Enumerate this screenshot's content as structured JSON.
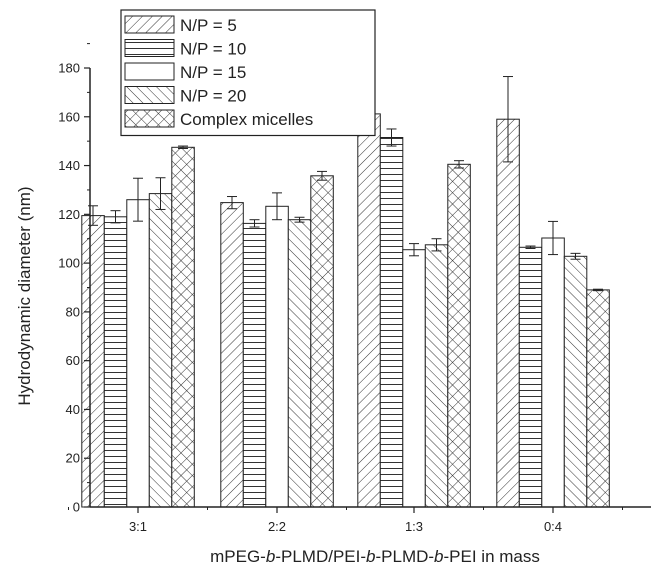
{
  "chart_data": {
    "type": "bar",
    "xlabel": [
      "mPEG-",
      "b",
      "-PLMD/PEI-",
      "b",
      "-PLMD-",
      "b",
      "-PEI in mass"
    ],
    "ylabel": "Hydrodynamic diameter (nm)",
    "ylim": [
      0,
      180
    ],
    "yticks": [
      "0",
      "20",
      "40",
      "60",
      "80",
      "100",
      "120",
      "140",
      "160",
      "180"
    ],
    "categories": [
      "3:1",
      "2:2",
      "1:3",
      "0:4"
    ],
    "legend_position": "top-left",
    "series": [
      {
        "name": "N/P = 5",
        "pattern": "diag-right",
        "values": [
          119.5,
          124.8,
          161.2,
          159.0
        ],
        "errors": [
          4.0,
          2.5,
          7.8,
          17.5
        ]
      },
      {
        "name": "N/P = 10",
        "pattern": "horizontal",
        "values": [
          119.0,
          116.3,
          151.5,
          106.5
        ],
        "errors": [
          2.5,
          1.5,
          3.5,
          0.5
        ]
      },
      {
        "name": "N/P = 15",
        "pattern": "plain",
        "values": [
          126.0,
          123.3,
          105.5,
          110.3
        ],
        "errors": [
          8.8,
          5.5,
          2.5,
          6.8
        ]
      },
      {
        "name": "N/P = 20",
        "pattern": "diag-left",
        "values": [
          128.5,
          117.8,
          107.5,
          102.8
        ],
        "errors": [
          6.5,
          1.0,
          2.5,
          1.2
        ]
      },
      {
        "name": "Complex micelles",
        "pattern": "cross",
        "values": [
          147.5,
          135.8,
          140.5,
          89.0
        ],
        "errors": [
          0.5,
          1.8,
          1.5,
          0.3
        ]
      }
    ]
  }
}
